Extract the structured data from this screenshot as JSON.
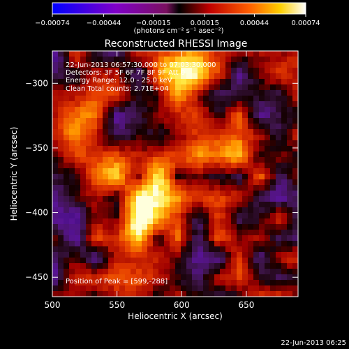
{
  "chart_data": {
    "type": "heatmap",
    "title": "Reconstructed RHESSI Image",
    "xlabel": "Heliocentric X (arcsec)",
    "ylabel": "Heliocentric Y (arcsec)",
    "xlim": [
      500,
      690
    ],
    "ylim": [
      -465,
      -275
    ],
    "x_ticks": [
      500,
      550,
      600,
      650
    ],
    "x_tick_labels": [
      "500",
      "550",
      "600",
      "650"
    ],
    "y_ticks": [
      -300,
      -350,
      -400,
      -450
    ],
    "y_tick_labels": [
      "−300",
      "−350",
      "−400",
      "−450"
    ],
    "colorbar": {
      "range": [
        -0.00074,
        0.00074
      ],
      "ticks": [
        -0.00074,
        -0.00044,
        -0.00015,
        0.00015,
        0.00044,
        0.00074
      ],
      "tick_labels": [
        "−0.00074",
        "−0.00044",
        "−0.00015",
        "0.00015",
        "0.00044",
        "0.00074"
      ],
      "unit_label": "(photons cm⁻² s⁻¹ asec⁻²)",
      "colormap": "blue-purple-red-orange-yellow-white"
    },
    "info_lines": [
      "22-Jun-2013 06:57:30.000 to 07:03:30.000",
      "Detectors: 3F 5F 6F 7F 8F 9F  Att 0",
      "Energy Range: 12.0 - 25.0 keV",
      "Clean    Total counts: 2.71E+04"
    ],
    "peak_label": "Position of Peak = [599,-288]",
    "peak": [
      599,
      -288
    ],
    "blobs": [
      {
        "x": 599,
        "y": -288,
        "intensity": 1.0
      },
      {
        "x": 572,
        "y": -405,
        "intensity": 0.95
      },
      {
        "x": 636,
        "y": -352,
        "intensity": 0.7
      },
      {
        "x": 585,
        "y": -372,
        "intensity": 0.6
      },
      {
        "x": 548,
        "y": -368,
        "intensity": 0.45
      },
      {
        "x": 520,
        "y": -330,
        "intensity": 0.35
      },
      {
        "x": 610,
        "y": -330,
        "intensity": 0.4
      }
    ],
    "grid": false
  },
  "footer_timestamp": "22-Jun-2013 06:25"
}
